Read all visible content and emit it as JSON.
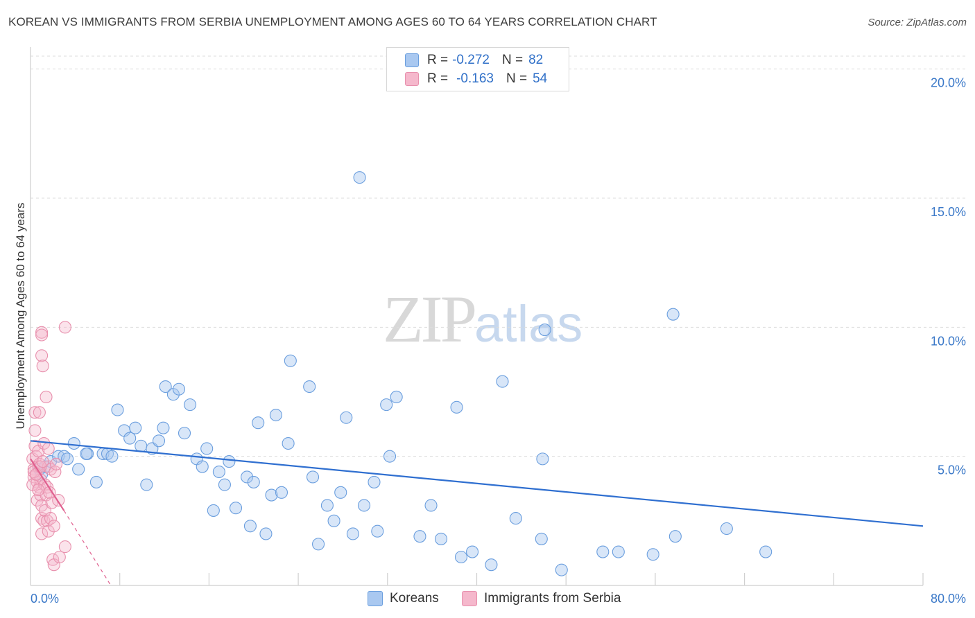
{
  "title": "KOREAN VS IMMIGRANTS FROM SERBIA UNEMPLOYMENT AMONG AGES 60 TO 64 YEARS CORRELATION CHART",
  "source": "Source: ZipAtlas.com",
  "watermark": {
    "zip": "ZIP",
    "atlas": "atlas"
  },
  "legend": {
    "r_label": "R =",
    "n_label": "N =",
    "rows": [
      {
        "r": "-0.272",
        "n": "82",
        "fill": "#a9c8f0",
        "stroke": "#6a9ede"
      },
      {
        "r": "-0.163",
        "n": "54",
        "fill": "#f5b8cc",
        "stroke": "#e890ad"
      }
    ]
  },
  "bottom_legend": {
    "koreans": "Koreans",
    "serbia": "Immigrants from Serbia"
  },
  "colors": {
    "blue_line": "#2f6fd0",
    "pink_line": "#e0608f",
    "grid": "#dcdcdc",
    "tick_text": "#3a78c8"
  },
  "chart_data": {
    "type": "scatter",
    "title": "KOREAN VS IMMIGRANTS FROM SERBIA UNEMPLOYMENT AMONG AGES 60 TO 64 YEARS CORRELATION CHART",
    "xlabel": "",
    "ylabel": "Unemployment Among Ages 60 to 64 years",
    "xlim": [
      0,
      80
    ],
    "ylim": [
      0,
      20.5
    ],
    "x_tick_labels": {
      "min": "0.0%",
      "max": "80.0%"
    },
    "y_ticks": [
      {
        "value": 5,
        "label": "5.0%"
      },
      {
        "value": 10,
        "label": "10.0%"
      },
      {
        "value": 15,
        "label": "15.0%"
      },
      {
        "value": 20,
        "label": "20.0%"
      }
    ],
    "series": [
      {
        "name": "Koreans",
        "r": -0.272,
        "n": 82,
        "trend": {
          "x0": 0,
          "y0": 5.6,
          "x1": 80,
          "y1": 2.3
        },
        "points": [
          [
            0.8,
            4.5
          ],
          [
            1.0,
            4.3
          ],
          [
            1.3,
            4.6
          ],
          [
            1.8,
            4.8
          ],
          [
            2.5,
            5.0
          ],
          [
            3.0,
            5.0
          ],
          [
            3.3,
            4.9
          ],
          [
            3.9,
            5.5
          ],
          [
            4.3,
            4.5
          ],
          [
            5.1,
            5.1
          ],
          [
            5.0,
            5.1
          ],
          [
            5.9,
            4.0
          ],
          [
            6.5,
            5.1
          ],
          [
            6.9,
            5.1
          ],
          [
            7.3,
            5.0
          ],
          [
            7.8,
            6.8
          ],
          [
            8.4,
            6.0
          ],
          [
            8.9,
            5.7
          ],
          [
            9.4,
            6.1
          ],
          [
            9.9,
            5.4
          ],
          [
            10.4,
            3.9
          ],
          [
            10.9,
            5.3
          ],
          [
            11.5,
            5.6
          ],
          [
            11.9,
            6.1
          ],
          [
            12.1,
            7.7
          ],
          [
            12.8,
            7.4
          ],
          [
            13.3,
            7.6
          ],
          [
            13.8,
            5.9
          ],
          [
            14.3,
            7.0
          ],
          [
            14.9,
            4.9
          ],
          [
            15.4,
            4.6
          ],
          [
            15.8,
            5.3
          ],
          [
            16.4,
            2.9
          ],
          [
            16.9,
            4.4
          ],
          [
            17.4,
            3.9
          ],
          [
            17.8,
            4.8
          ],
          [
            18.4,
            3.0
          ],
          [
            19.4,
            4.2
          ],
          [
            19.7,
            2.3
          ],
          [
            20.0,
            4.0
          ],
          [
            20.4,
            6.3
          ],
          [
            21.1,
            2.0
          ],
          [
            21.6,
            3.5
          ],
          [
            22.0,
            6.6
          ],
          [
            22.5,
            3.6
          ],
          [
            23.1,
            5.5
          ],
          [
            23.3,
            8.7
          ],
          [
            25.0,
            7.7
          ],
          [
            25.3,
            4.2
          ],
          [
            25.8,
            1.6
          ],
          [
            26.6,
            3.1
          ],
          [
            27.2,
            2.5
          ],
          [
            27.8,
            3.6
          ],
          [
            28.3,
            6.5
          ],
          [
            28.9,
            2.0
          ],
          [
            29.5,
            15.8
          ],
          [
            29.9,
            3.1
          ],
          [
            30.8,
            4.0
          ],
          [
            31.1,
            2.1
          ],
          [
            31.9,
            7.0
          ],
          [
            32.2,
            5.0
          ],
          [
            32.8,
            7.3
          ],
          [
            34.9,
            1.9
          ],
          [
            35.9,
            3.1
          ],
          [
            36.8,
            1.8
          ],
          [
            38.2,
            6.9
          ],
          [
            38.6,
            1.1
          ],
          [
            39.6,
            1.3
          ],
          [
            41.3,
            0.8
          ],
          [
            42.3,
            7.9
          ],
          [
            43.5,
            2.6
          ],
          [
            45.8,
            1.8
          ],
          [
            45.9,
            4.9
          ],
          [
            46.1,
            9.9
          ],
          [
            47.6,
            0.6
          ],
          [
            51.3,
            1.3
          ],
          [
            52.7,
            1.3
          ],
          [
            55.8,
            1.2
          ],
          [
            57.6,
            10.5
          ],
          [
            57.8,
            1.9
          ],
          [
            62.4,
            2.2
          ],
          [
            65.9,
            1.3
          ]
        ]
      },
      {
        "name": "Immigrants from Serbia",
        "r": -0.163,
        "n": 54,
        "trend": {
          "x0": 0,
          "y0": 4.9,
          "x1": 3.0,
          "y1": 2.9
        },
        "trend_dashed": {
          "x0": 3.0,
          "y0": 2.9,
          "x1": 7.2,
          "y1": 0.0
        },
        "points": [
          [
            0.2,
            4.9
          ],
          [
            0.3,
            4.5
          ],
          [
            0.3,
            4.2
          ],
          [
            0.4,
            5.4
          ],
          [
            0.4,
            6.0
          ],
          [
            0.4,
            6.7
          ],
          [
            0.5,
            5.0
          ],
          [
            0.5,
            4.3
          ],
          [
            0.6,
            4.0
          ],
          [
            0.6,
            3.3
          ],
          [
            0.7,
            4.6
          ],
          [
            0.7,
            5.2
          ],
          [
            0.8,
            3.8
          ],
          [
            0.8,
            4.7
          ],
          [
            0.8,
            6.7
          ],
          [
            0.9,
            4.1
          ],
          [
            0.9,
            3.5
          ],
          [
            1.0,
            3.1
          ],
          [
            1.0,
            2.6
          ],
          [
            1.0,
            2.0
          ],
          [
            1.0,
            9.8
          ],
          [
            1.0,
            9.7
          ],
          [
            1.0,
            8.9
          ],
          [
            1.1,
            8.5
          ],
          [
            1.2,
            5.5
          ],
          [
            1.2,
            2.5
          ],
          [
            1.3,
            2.9
          ],
          [
            1.3,
            3.9
          ],
          [
            1.4,
            3.5
          ],
          [
            1.4,
            7.3
          ],
          [
            1.5,
            2.5
          ],
          [
            1.5,
            3.8
          ],
          [
            1.6,
            5.3
          ],
          [
            1.6,
            4.6
          ],
          [
            1.6,
            2.1
          ],
          [
            1.7,
            3.6
          ],
          [
            1.8,
            4.5
          ],
          [
            1.8,
            2.6
          ],
          [
            1.9,
            3.2
          ],
          [
            2.0,
            1.0
          ],
          [
            2.1,
            0.8
          ],
          [
            2.1,
            2.3
          ],
          [
            2.2,
            4.4
          ],
          [
            2.3,
            4.7
          ],
          [
            2.5,
            3.3
          ],
          [
            2.6,
            1.1
          ],
          [
            3.1,
            10.0
          ],
          [
            3.1,
            1.5
          ],
          [
            0.2,
            3.9
          ],
          [
            0.3,
            4.4
          ],
          [
            0.5,
            4.3
          ],
          [
            0.7,
            3.7
          ],
          [
            0.9,
            4.6
          ],
          [
            1.1,
            4.8
          ]
        ]
      }
    ]
  }
}
